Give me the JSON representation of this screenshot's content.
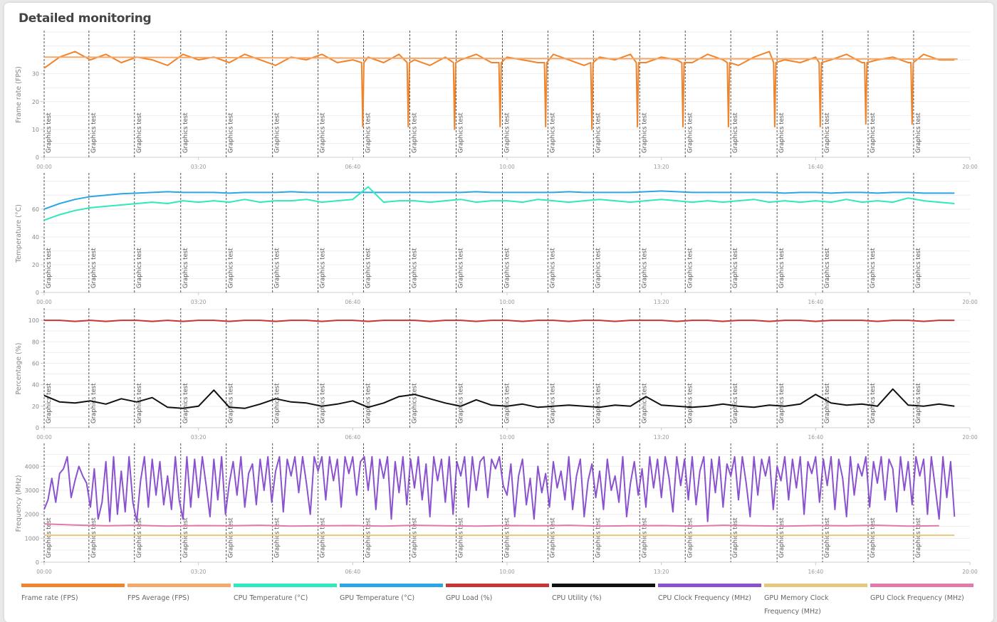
{
  "page": {
    "title": "Detailed monitoring"
  },
  "legend": [
    {
      "label": "Frame rate (FPS)",
      "color": "#f0842c"
    },
    {
      "label": "FPS Average (FPS)",
      "color": "#f4a869"
    },
    {
      "label": "CPU Temperature (°C)",
      "color": "#2ee9b9"
    },
    {
      "label": "GPU Temperature (°C)",
      "color": "#2aa6e6"
    },
    {
      "label": "GPU Load (%)",
      "color": "#c93535"
    },
    {
      "label": "CPU Utility (%)",
      "color": "#111111"
    },
    {
      "label": "CPU Clock Frequency (MHz)",
      "color": "#8a52cf"
    },
    {
      "label": "GPU Memory Clock Frequency (MHz)",
      "color": "#e5c87c"
    },
    {
      "label": "GPU Clock Frequency (MHz)",
      "color": "#e379a9"
    }
  ],
  "chart_data": {
    "type": "line",
    "x_unit": "seconds",
    "xlim": [
      0,
      1200
    ],
    "x_ticks": [
      0,
      200,
      400,
      600,
      800,
      1000,
      1200
    ],
    "x_tick_labels": [
      "00:00",
      "03:20",
      "06:40",
      "10:00",
      "13:20",
      "16:40",
      "20:00"
    ],
    "markers": {
      "label": "Graphics test",
      "times": [
        0,
        58,
        117,
        177,
        236,
        296,
        355,
        414,
        474,
        534,
        594,
        653,
        712,
        772,
        831,
        890,
        950,
        1009,
        1068,
        1127
      ]
    },
    "panels": [
      {
        "ylabel": "Frame rate (FPS)",
        "ylim": [
          0,
          45
        ],
        "yticks": [
          0,
          10,
          20,
          30
        ],
        "grid_step": 5,
        "series": [
          {
            "name": "Frame rate (FPS)",
            "color": "#f0842c",
            "t_step": 20,
            "values": [
              32,
              36,
              38,
              35,
              37,
              34,
              36,
              35,
              33,
              37,
              35,
              36,
              34,
              37,
              35,
              33,
              36,
              35,
              37,
              34,
              35,
              36,
              34,
              37,
              35,
              33,
              36,
              35,
              37,
              34,
              36,
              35,
              34,
              37,
              35,
              33,
              36,
              35,
              37,
              34,
              36,
              35,
              34,
              37,
              35,
              33,
              36,
              38,
              35,
              34,
              36,
              35,
              37,
              34,
              35,
              36,
              34,
              37,
              35,
              35
            ],
            "drops": [
              [
                413,
                11
              ],
              [
                472,
                11
              ],
              [
                532,
                10
              ],
              [
                591,
                11
              ],
              [
                650,
                11
              ],
              [
                710,
                10
              ],
              [
                769,
                11
              ],
              [
                828,
                11
              ],
              [
                887,
                11
              ],
              [
                947,
                11
              ],
              [
                1006,
                11
              ],
              [
                1065,
                12
              ],
              [
                1125,
                12
              ]
            ]
          },
          {
            "name": "FPS Average (FPS)",
            "color": "#f4a869",
            "t_step": 592,
            "values": [
              36,
              35.5,
              35.3
            ]
          }
        ]
      },
      {
        "ylabel": "Temperature (°C)",
        "ylim": [
          0,
          85
        ],
        "yticks": [
          0,
          20,
          40,
          60
        ],
        "grid_step": 10,
        "series": [
          {
            "name": "GPU Temperature (°C)",
            "color": "#2aa6e6",
            "t_step": 20,
            "values": [
              60,
              64,
              67,
              69,
              70,
              71,
              71.5,
              72,
              72.5,
              72,
              72,
              72,
              71.5,
              72,
              72,
              72,
              72.5,
              72,
              72,
              72,
              72,
              72,
              72,
              72,
              72,
              72,
              72,
              72,
              72.5,
              72,
              72,
              72,
              72,
              72,
              72.5,
              72,
              72,
              72,
              72,
              72.5,
              73,
              72.5,
              72,
              72,
              72,
              72,
              72,
              72,
              71.5,
              72,
              72,
              71.5,
              72,
              72,
              71.5,
              72,
              72,
              71.5,
              71.5,
              71.5
            ]
          },
          {
            "name": "CPU Temperature (°C)",
            "color": "#2ee9b9",
            "t_step": 20,
            "values": [
              52,
              56,
              59,
              61,
              62,
              63,
              64,
              65,
              64,
              66,
              65,
              66,
              65,
              67,
              65,
              66,
              66,
              67,
              65,
              66,
              67,
              76,
              65,
              66,
              66,
              65,
              66,
              67,
              65,
              66,
              66,
              65,
              67,
              66,
              65,
              66,
              67,
              66,
              65,
              66,
              67,
              66,
              65,
              66,
              65,
              66,
              67,
              65,
              66,
              65,
              66,
              65,
              67,
              65,
              66,
              65,
              68,
              66,
              65,
              64
            ]
          }
        ]
      },
      {
        "ylabel": "Percentage (%)",
        "ylim": [
          0,
          110
        ],
        "yticks": [
          0,
          20,
          40,
          60,
          80,
          100
        ],
        "grid_step": 10,
        "series": [
          {
            "name": "GPU Load (%)",
            "color": "#c93535",
            "t_step": 20,
            "values": [
              100,
              100,
              99,
              100,
              99,
              100,
              100,
              99,
              100,
              99,
              100,
              100,
              99,
              100,
              100,
              99,
              100,
              100,
              99,
              100,
              100,
              99,
              100,
              100,
              100,
              99,
              100,
              100,
              99,
              100,
              100,
              99,
              100,
              100,
              99,
              100,
              100,
              99,
              100,
              100,
              100,
              99,
              100,
              100,
              99,
              100,
              100,
              99,
              100,
              100,
              99,
              100,
              100,
              100,
              99,
              100,
              100,
              99,
              100,
              100
            ]
          },
          {
            "name": "CPU Utility (%)",
            "color": "#111111",
            "t_step": 20,
            "values": [
              30,
              24,
              23,
              25,
              22,
              27,
              24,
              28,
              19,
              18,
              20,
              35,
              19,
              18,
              22,
              27,
              24,
              23,
              20,
              22,
              25,
              19,
              23,
              29,
              31,
              27,
              23,
              20,
              26,
              21,
              20,
              22,
              19,
              20,
              21,
              20,
              19,
              21,
              20,
              29,
              21,
              20,
              19,
              20,
              22,
              20,
              19,
              21,
              20,
              22,
              31,
              23,
              21,
              22,
              20,
              36,
              21,
              20,
              22,
              20
            ]
          }
        ]
      },
      {
        "ylabel": "Frequency (MHz)",
        "ylim": [
          0,
          4900
        ],
        "yticks": [
          0,
          1000,
          2000,
          3000,
          4000
        ],
        "grid_step": 500,
        "series": [
          {
            "name": "CPU Clock Frequency (MHz)",
            "color": "#8a52cf",
            "t_step": 5,
            "values": [
              2200,
              2600,
              3500,
              2500,
              3700,
              3900,
              4400,
              2700,
              3400,
              4000,
              3600,
              3300,
              2300,
              3900,
              1800,
              2500,
              4200,
              1700,
              4400,
              2000,
              3800,
              2100,
              4400,
              2500,
              1700,
              3400,
              4400,
              2300,
              4300,
              2800,
              4200,
              2400,
              3600,
              2200,
              4400,
              2600,
              1800,
              4400,
              2300,
              4300,
              2700,
              4400,
              3200,
              1900,
              4300,
              2600,
              4400,
              2000,
              3300,
              4200,
              2800,
              4400,
              2300,
              3700,
              4100,
              2400,
              4300,
              3000,
              4400,
              2500,
              3800,
              4400,
              2100,
              4300,
              3600,
              4400,
              2900,
              4400,
              3300,
              2000,
              4400,
              3800,
              4400,
              2600,
              4400,
              3400,
              4300,
              2300,
              4400,
              3700,
              4400,
              2800,
              4200,
              4400,
              3000,
              4400,
              2200,
              4300,
              3500,
              4400,
              1800,
              4200,
              2900,
              4400,
              2400,
              4300,
              3100,
              4400,
              2600,
              4100,
              1900,
              4400,
              3400,
              4300,
              2500,
              4400,
              2000,
              4200,
              3600,
              4400,
              2300,
              4400,
              3000,
              4200,
              4400,
              2700,
              4300,
              3900,
              4400,
              3200,
              2800,
              4100,
              1900,
              3600,
              4300,
              2400,
              3500,
              1800,
              4000,
              2900,
              3700,
              2300,
              4200,
              3100,
              3800,
              2600,
              4400,
              2200,
              3600,
              4300,
              1900,
              3400,
              4100,
              2700,
              3800,
              2200,
              4300,
              3000,
              3600,
              2500,
              4400,
              1900,
              3300,
              4200,
              2800,
              3900,
              2300,
              4400,
              3100,
              4300,
              2700,
              4400,
              3500,
              2100,
              4400,
              3200,
              4300,
              2600,
              4400,
              2400,
              3800,
              4400,
              1700,
              4300,
              2900,
              4400,
              2300,
              4100,
              3600,
              4400,
              2600,
              4400,
              3300,
              1900,
              4400,
              2800,
              4300,
              3600,
              4400,
              2200,
              4000,
              3400,
              4400,
              2600,
              4300,
              3100,
              4400,
              2000,
              4200,
              3700,
              4400,
              2500,
              4300,
              3200,
              4400,
              2200,
              4300,
              3500,
              1900,
              4400,
              2800,
              4100,
              3600,
              4400,
              2300,
              4200,
              3300,
              4400,
              2600,
              4300,
              3900,
              2100,
              4400,
              3000,
              4200,
              2400,
              4400,
              3600,
              4300,
              2000,
              4400,
              3100,
              1800,
              4400,
              2700,
              4200,
              1900
            ]
          },
          {
            "name": "GPU Clock Frequency (MHz)",
            "color": "#e379a9",
            "t_step": 40,
            "values": [
              1600,
              1550,
              1520,
              1540,
              1510,
              1530,
              1520,
              1540,
              1510,
              1520,
              1530,
              1510,
              1540,
              1520,
              1510,
              1530,
              1520,
              1540,
              1510,
              1520,
              1530,
              1510,
              1540,
              1520,
              1510,
              1530,
              1520,
              1540,
              1510,
              1520
            ]
          },
          {
            "name": "GPU Memory Clock Frequency (MHz)",
            "color": "#e5c87c",
            "t_step": 1180,
            "values": [
              1125,
              1125
            ]
          }
        ]
      }
    ]
  }
}
